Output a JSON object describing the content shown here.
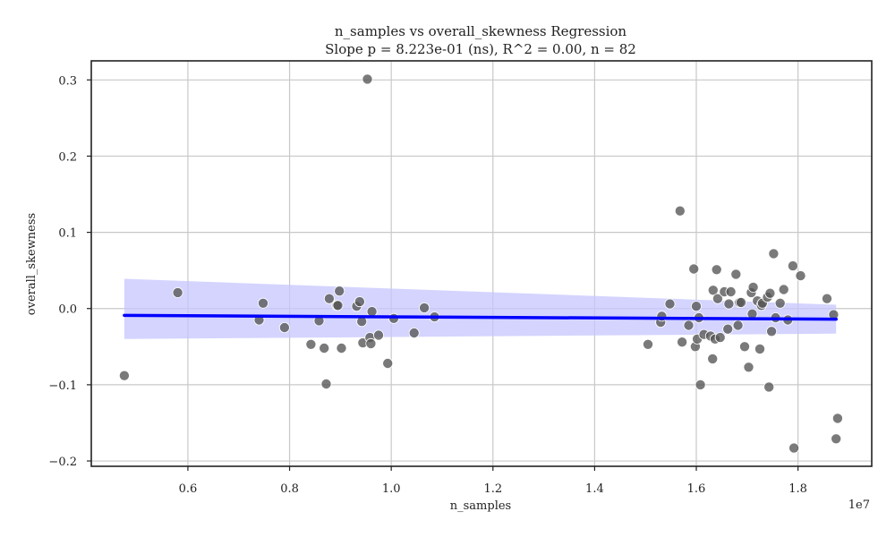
{
  "chart_data": {
    "type": "scatter",
    "title": "n_samples vs overall_skewness Regression",
    "subtitle": "Slope p = 8.223e-01 (ns), R^2 = 0.00, n = 82",
    "xlabel": "n_samples",
    "ylabel": "overall_skewness",
    "x_offset_label": "1e7",
    "xlim": [
      0.41,
      1.945
    ],
    "ylim": [
      -0.207,
      0.325
    ],
    "x_ticks": [
      0.6,
      0.8,
      1.0,
      1.2,
      1.4,
      1.6,
      1.8
    ],
    "x_tick_labels": [
      "0.6",
      "0.8",
      "1.0",
      "1.2",
      "1.4",
      "1.6",
      "1.8"
    ],
    "y_ticks": [
      -0.2,
      -0.1,
      0.0,
      0.1,
      0.2,
      0.3
    ],
    "y_tick_labels": [
      "−0.2",
      "−0.1",
      "0.0",
      "0.1",
      "0.2",
      "0.3"
    ],
    "grid": true,
    "colors": {
      "points": "#555555",
      "regression_line": "#0000ff",
      "confidence_band": "#c6c6ff"
    },
    "regression": {
      "x": [
        0.475,
        1.875
      ],
      "y": [
        -0.009,
        -0.014
      ],
      "ci_upper": [
        0.039,
        0.005
      ],
      "ci_lower": [
        -0.04,
        -0.033
      ]
    },
    "points": [
      [
        0.475,
        -0.088
      ],
      [
        0.58,
        0.021
      ],
      [
        0.74,
        -0.015
      ],
      [
        0.748,
        0.007
      ],
      [
        0.79,
        -0.025
      ],
      [
        0.842,
        -0.047
      ],
      [
        0.858,
        -0.016
      ],
      [
        0.868,
        -0.052
      ],
      [
        0.872,
        -0.099
      ],
      [
        0.878,
        0.013
      ],
      [
        0.893,
        0.004
      ],
      [
        0.895,
        0.004
      ],
      [
        0.898,
        0.023
      ],
      [
        0.902,
        -0.052
      ],
      [
        0.932,
        0.003
      ],
      [
        0.938,
        0.009
      ],
      [
        0.942,
        -0.017
      ],
      [
        0.944,
        -0.045
      ],
      [
        0.953,
        0.301
      ],
      [
        0.958,
        -0.038
      ],
      [
        0.96,
        -0.046
      ],
      [
        0.962,
        -0.004
      ],
      [
        0.975,
        -0.035
      ],
      [
        0.993,
        -0.072
      ],
      [
        1.005,
        -0.013
      ],
      [
        1.045,
        -0.032
      ],
      [
        1.065,
        0.001
      ],
      [
        1.085,
        -0.011
      ],
      [
        1.505,
        -0.047
      ],
      [
        1.53,
        -0.018
      ],
      [
        1.532,
        -0.01
      ],
      [
        1.548,
        0.006
      ],
      [
        1.568,
        0.128
      ],
      [
        1.572,
        -0.044
      ],
      [
        1.585,
        -0.022
      ],
      [
        1.595,
        0.052
      ],
      [
        1.598,
        -0.05
      ],
      [
        1.6,
        0.003
      ],
      [
        1.602,
        -0.04
      ],
      [
        1.605,
        -0.012
      ],
      [
        1.608,
        -0.1
      ],
      [
        1.615,
        -0.034
      ],
      [
        1.628,
        -0.036
      ],
      [
        1.632,
        -0.066
      ],
      [
        1.633,
        0.024
      ],
      [
        1.637,
        -0.04
      ],
      [
        1.64,
        0.051
      ],
      [
        1.642,
        0.013
      ],
      [
        1.647,
        -0.038
      ],
      [
        1.655,
        0.022
      ],
      [
        1.662,
        -0.027
      ],
      [
        1.664,
        0.006
      ],
      [
        1.668,
        0.022
      ],
      [
        1.678,
        0.045
      ],
      [
        1.682,
        -0.022
      ],
      [
        1.685,
        0.008
      ],
      [
        1.688,
        0.008
      ],
      [
        1.695,
        -0.05
      ],
      [
        1.703,
        -0.077
      ],
      [
        1.708,
        0.021
      ],
      [
        1.71,
        -0.007
      ],
      [
        1.712,
        0.028
      ],
      [
        1.72,
        0.01
      ],
      [
        1.725,
        -0.053
      ],
      [
        1.728,
        0.004
      ],
      [
        1.73,
        0.007
      ],
      [
        1.74,
        0.015
      ],
      [
        1.743,
        -0.103
      ],
      [
        1.745,
        0.02
      ],
      [
        1.748,
        -0.03
      ],
      [
        1.752,
        0.072
      ],
      [
        1.756,
        -0.012
      ],
      [
        1.765,
        0.007
      ],
      [
        1.772,
        0.025
      ],
      [
        1.78,
        -0.015
      ],
      [
        1.79,
        0.056
      ],
      [
        1.792,
        -0.183
      ],
      [
        1.805,
        0.043
      ],
      [
        1.857,
        0.013
      ],
      [
        1.87,
        -0.008
      ],
      [
        1.875,
        -0.171
      ],
      [
        1.878,
        -0.144
      ]
    ]
  }
}
